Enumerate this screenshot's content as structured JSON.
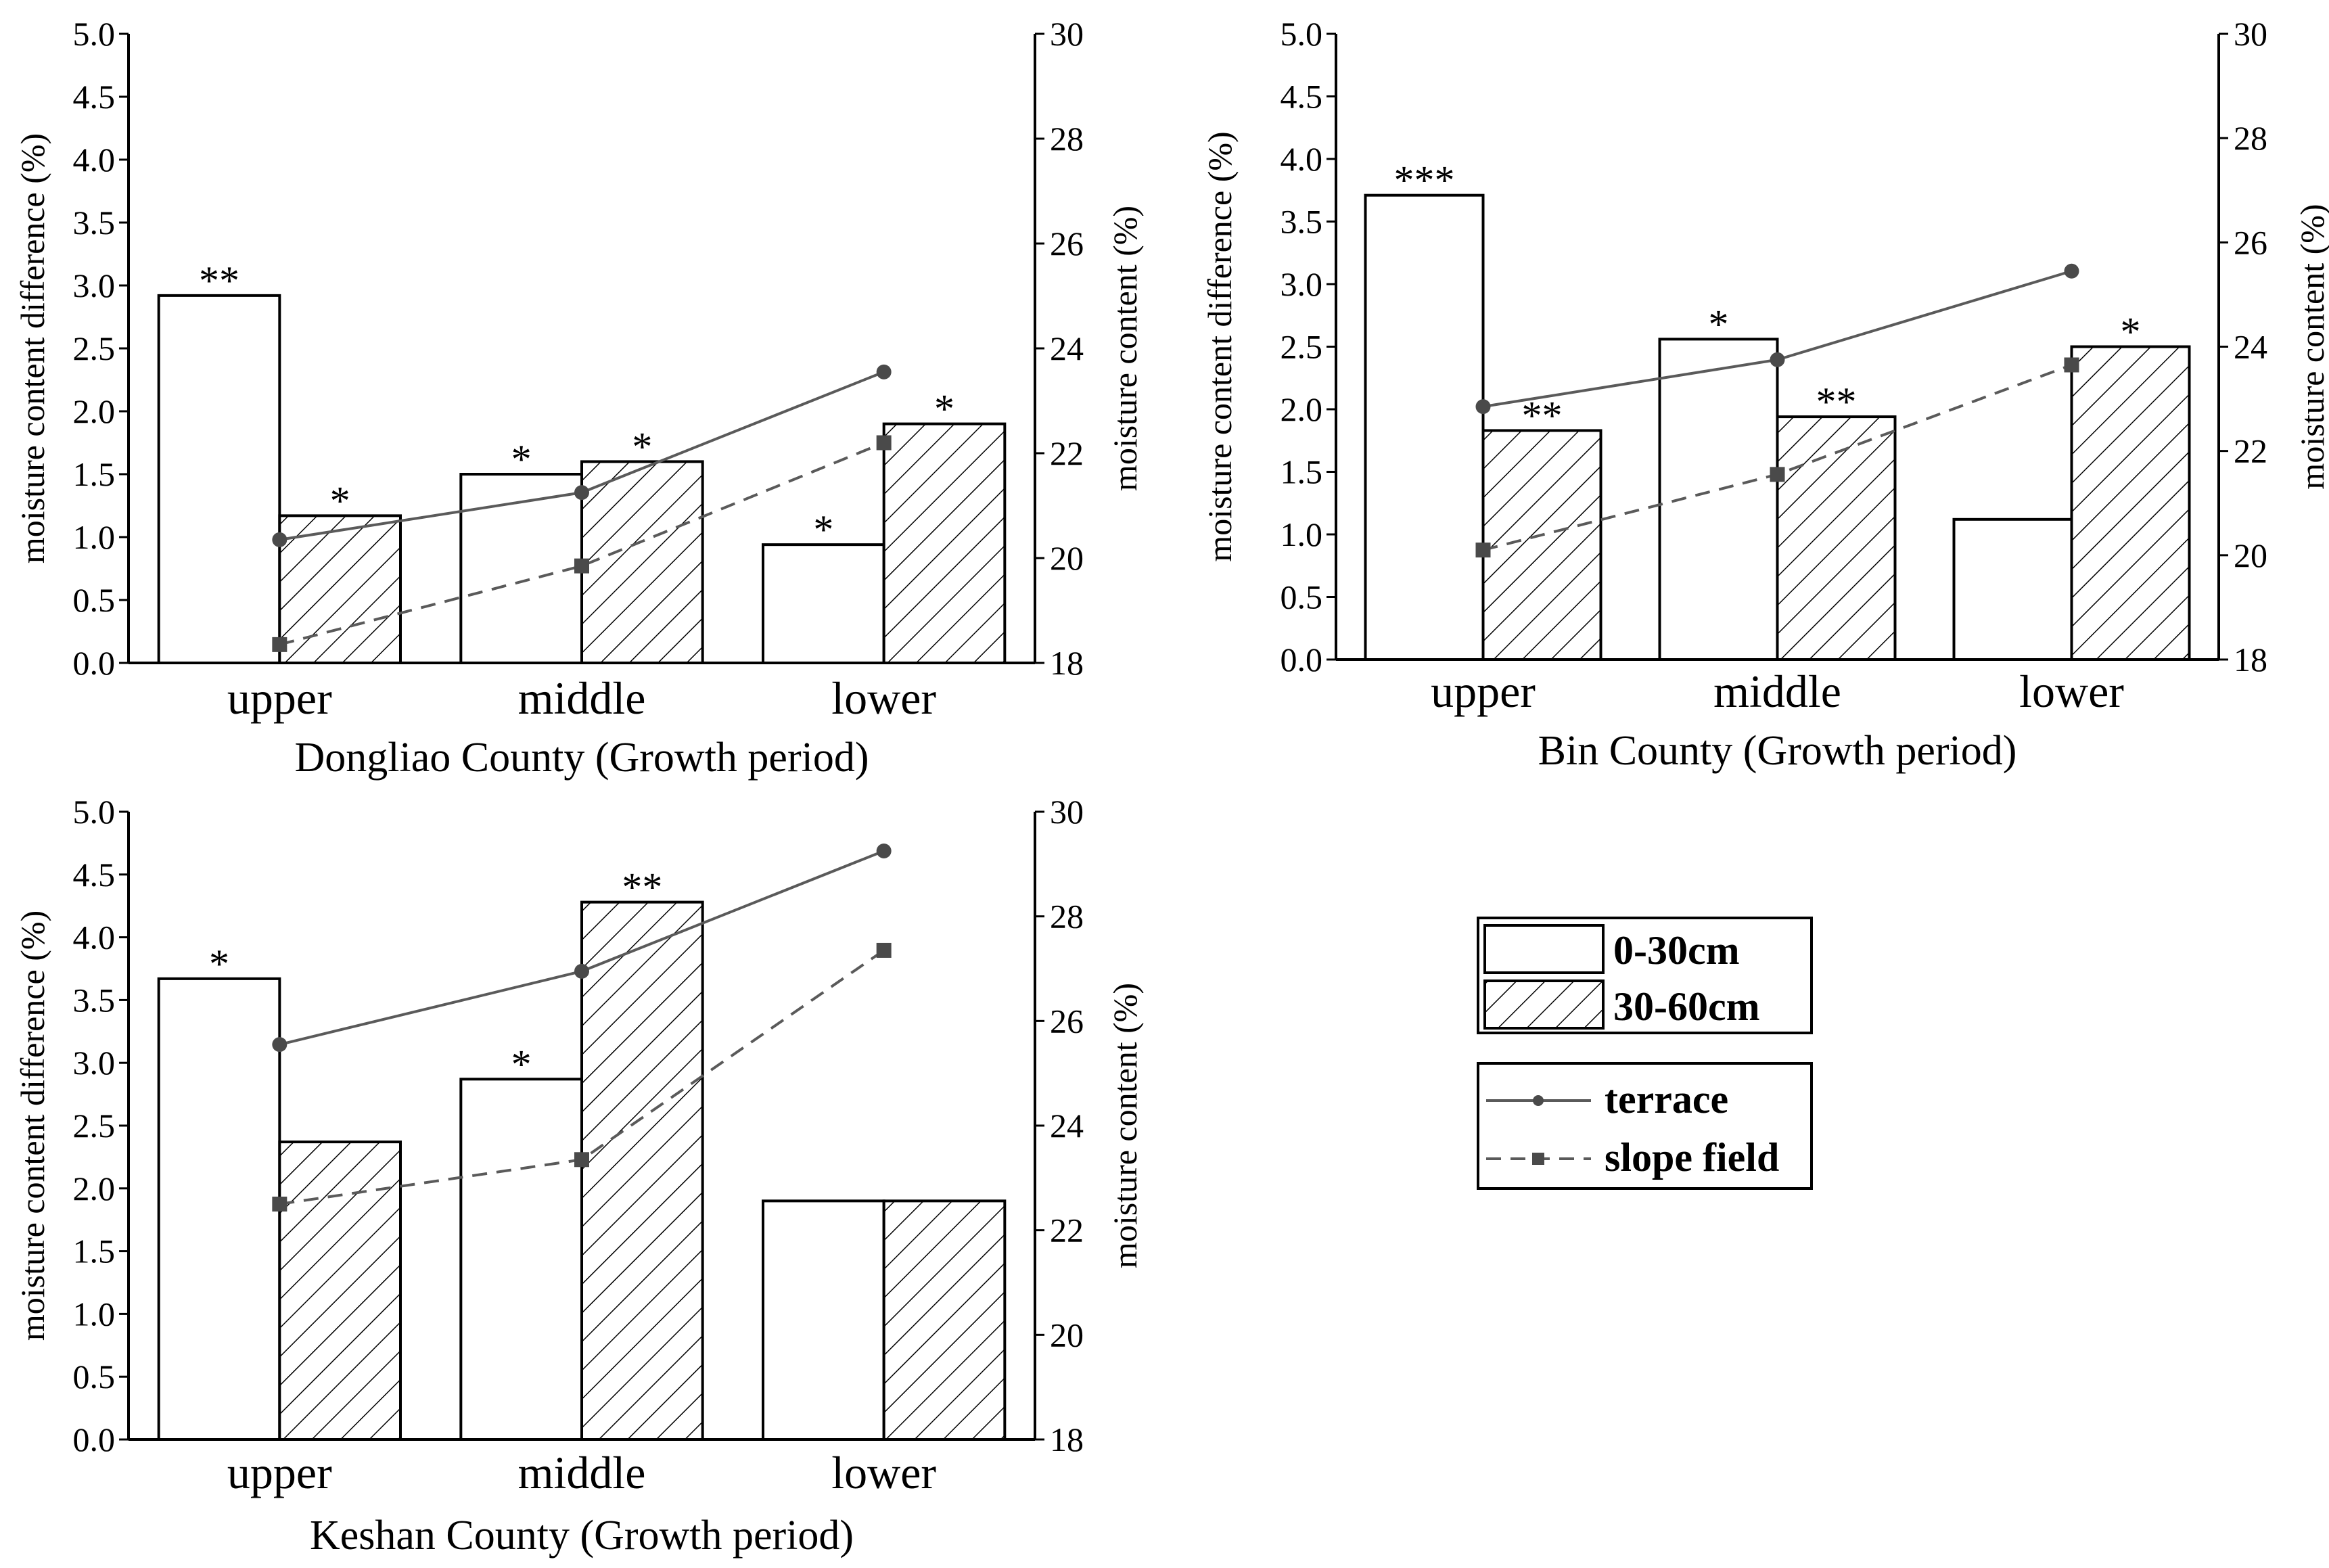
{
  "chart_data": [
    {
      "type": "bar",
      "title": "Dongliao County (Growth period)",
      "categories": [
        "upper",
        "middle",
        "lower"
      ],
      "ylabel": "moisture content difference (%)",
      "y2label": "moisture content (%)",
      "ylim": [
        0,
        5
      ],
      "y2lim": [
        18,
        30
      ],
      "yticks": [
        "0.0",
        "0.5",
        "1.0",
        "1.5",
        "2.0",
        "2.5",
        "3.0",
        "3.5",
        "4.0",
        "4.5",
        "5.0"
      ],
      "y2ticks": [
        "18",
        "20",
        "22",
        "24",
        "26",
        "28",
        "30"
      ],
      "bar_series": [
        {
          "name": "0-30cm",
          "values": [
            2.92,
            1.5,
            0.94
          ],
          "sig": [
            "**",
            "*",
            "*"
          ]
        },
        {
          "name": "30-60cm",
          "values": [
            1.17,
            1.6,
            1.9
          ],
          "sig": [
            "*",
            "*",
            "*"
          ]
        }
      ],
      "line_series": [
        {
          "name": "terrace",
          "values": [
            20.35,
            21.25,
            23.55
          ]
        },
        {
          "name": "slope field",
          "values": [
            18.35,
            19.85,
            22.2
          ]
        }
      ]
    },
    {
      "type": "bar",
      "title": "Bin County (Growth period)",
      "categories": [
        "upper",
        "middle",
        "lower"
      ],
      "ylabel": "moisture content difference (%)",
      "y2label": "moisture content (%)",
      "ylim": [
        0,
        5
      ],
      "y2lim": [
        18,
        30
      ],
      "yticks": [
        "0.0",
        "0.5",
        "1.0",
        "1.5",
        "2.0",
        "2.5",
        "3.0",
        "3.5",
        "4.0",
        "4.5",
        "5.0"
      ],
      "y2ticks": [
        "18",
        "20",
        "22",
        "24",
        "26",
        "28",
        "30"
      ],
      "bar_series": [
        {
          "name": "0-30cm",
          "values": [
            3.71,
            2.56,
            1.12
          ],
          "sig": [
            "***",
            "*",
            ""
          ]
        },
        {
          "name": "30-60cm",
          "values": [
            1.83,
            1.94,
            2.5
          ],
          "sig": [
            "**",
            "**",
            "*"
          ]
        }
      ],
      "line_series": [
        {
          "name": "terrace",
          "values": [
            22.85,
            23.75,
            25.45
          ]
        },
        {
          "name": "slope field",
          "values": [
            20.1,
            21.55,
            23.65
          ]
        }
      ]
    },
    {
      "type": "bar",
      "title": "Keshan County (Growth period)",
      "categories": [
        "upper",
        "middle",
        "lower"
      ],
      "ylabel": "moisture content difference (%)",
      "y2label": "moisture content (%)",
      "ylim": [
        0,
        5
      ],
      "y2lim": [
        18,
        30
      ],
      "yticks": [
        "0.0",
        "0.5",
        "1.0",
        "1.5",
        "2.0",
        "2.5",
        "3.0",
        "3.5",
        "4.0",
        "4.5",
        "5.0"
      ],
      "y2ticks": [
        "18",
        "20",
        "22",
        "24",
        "26",
        "28",
        "30"
      ],
      "bar_series": [
        {
          "name": "0-30cm",
          "values": [
            3.67,
            2.87,
            1.9
          ],
          "sig": [
            "*",
            "*",
            ""
          ]
        },
        {
          "name": "30-60cm",
          "values": [
            2.37,
            4.28,
            1.9
          ],
          "sig": [
            "",
            "**",
            ""
          ]
        }
      ],
      "line_series": [
        {
          "name": "terrace",
          "values": [
            25.55,
            26.95,
            29.25
          ]
        },
        {
          "name": "slope field",
          "values": [
            22.5,
            23.35,
            27.35
          ]
        }
      ]
    }
  ],
  "legend": {
    "bars": [
      {
        "label": "0-30cm",
        "pattern": "plain"
      },
      {
        "label": "30-60cm",
        "pattern": "hatched"
      }
    ],
    "lines": [
      {
        "label": "terrace",
        "style": "solid",
        "marker": "circle"
      },
      {
        "label": "slope field",
        "style": "dashed",
        "marker": "square"
      }
    ]
  },
  "colors": {
    "line": "#5a5a5a",
    "marker": "#4a4a4a",
    "axis": "#000000",
    "bar_fill": "#ffffff"
  }
}
